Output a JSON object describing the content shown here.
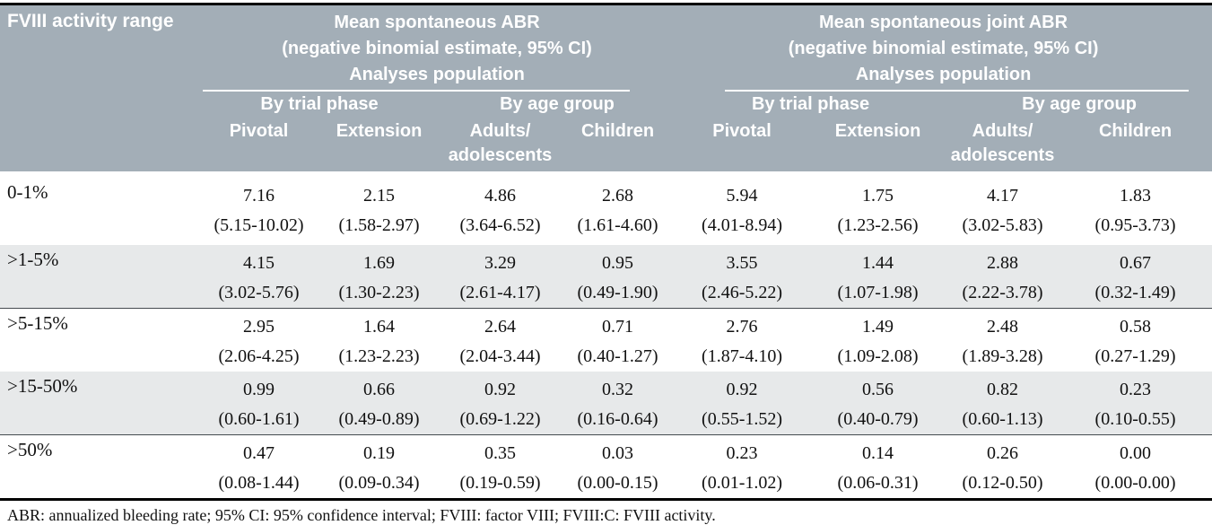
{
  "table": {
    "row_header_label": "FVIII activity range",
    "groups": [
      {
        "title_line1": "Mean spontaneous ABR",
        "title_line2": "(negative binomial estimate, 95% CI)",
        "title_line3": "Analyses population",
        "subgroup_trial": "By trial phase",
        "subgroup_age": "By age group",
        "columns": [
          {
            "label": "Pivotal"
          },
          {
            "label": "Extension"
          },
          {
            "label": "Adults/",
            "label2": "adolescents"
          },
          {
            "label": "Children"
          }
        ]
      },
      {
        "title_line1": "Mean spontaneous joint ABR",
        "title_line2": "(negative binomial estimate, 95% CI)",
        "title_line3": "Analyses population",
        "subgroup_trial": "By trial phase",
        "subgroup_age": "By age group",
        "columns": [
          {
            "label": "Pivotal"
          },
          {
            "label": "Extension"
          },
          {
            "label": "Adults/",
            "label2": "adolescents"
          },
          {
            "label": "Children"
          }
        ]
      }
    ],
    "rows": [
      {
        "label": "0-1%",
        "shaded": false,
        "values": [
          "7.16",
          "2.15",
          "4.86",
          "2.68",
          "5.94",
          "1.75",
          "4.17",
          "1.83"
        ],
        "cis": [
          "(5.15-10.02)",
          "(1.58-2.97)",
          "(3.64-6.52)",
          "(1.61-4.60)",
          "(4.01-8.94)",
          "(1.23-2.56)",
          "(3.02-5.83)",
          "(0.95-3.73)"
        ]
      },
      {
        "label": ">1-5%",
        "shaded": true,
        "values": [
          "4.15",
          "1.69",
          "3.29",
          "0.95",
          "3.55",
          "1.44",
          "2.88",
          "0.67"
        ],
        "cis": [
          "(3.02-5.76)",
          "(1.30-2.23)",
          "(2.61-4.17)",
          "(0.49-1.90)",
          "(2.46-5.22)",
          "(1.07-1.98)",
          "(2.22-3.78)",
          "(0.32-1.49)"
        ]
      },
      {
        "label": ">5-15%",
        "shaded": false,
        "values": [
          "2.95",
          "1.64",
          "2.64",
          "0.71",
          "2.76",
          "1.49",
          "2.48",
          "0.58"
        ],
        "cis": [
          "(2.06-4.25)",
          "(1.23-2.23)",
          "(2.04-3.44)",
          "(0.40-1.27)",
          "(1.87-4.10)",
          "(1.09-2.08)",
          "(1.89-3.28)",
          "(0.27-1.29)"
        ]
      },
      {
        "label": ">15-50%",
        "shaded": true,
        "values": [
          "0.99",
          "0.66",
          "0.92",
          "0.32",
          "0.92",
          "0.56",
          "0.82",
          "0.23"
        ],
        "cis": [
          "(0.60-1.61)",
          "(0.49-0.89)",
          "(0.69-1.22)",
          "(0.16-0.64)",
          "(0.55-1.52)",
          "(0.40-0.79)",
          "(0.60-1.13)",
          "(0.10-0.55)"
        ]
      },
      {
        "label": ">50%",
        "shaded": false,
        "values": [
          "0.47",
          "0.19",
          "0.35",
          "0.03",
          "0.23",
          "0.14",
          "0.26",
          "0.00"
        ],
        "cis": [
          "(0.08-1.44)",
          "(0.09-0.34)",
          "(0.19-0.59)",
          "(0.00-0.15)",
          "(0.01-1.02)",
          "(0.06-0.31)",
          "(0.12-0.50)",
          "(0.00-0.00)"
        ]
      }
    ],
    "footnote": "ABR: annualized bleeding rate; 95% CI: 95% confidence interval; FVIII: factor VIII; FVIII:C: FVIII activity.",
    "colors": {
      "header_bg": "#a3aeb7",
      "header_text": "#ffffff",
      "stripe_bg": "#e7e9ea",
      "rule": "#000000"
    }
  }
}
